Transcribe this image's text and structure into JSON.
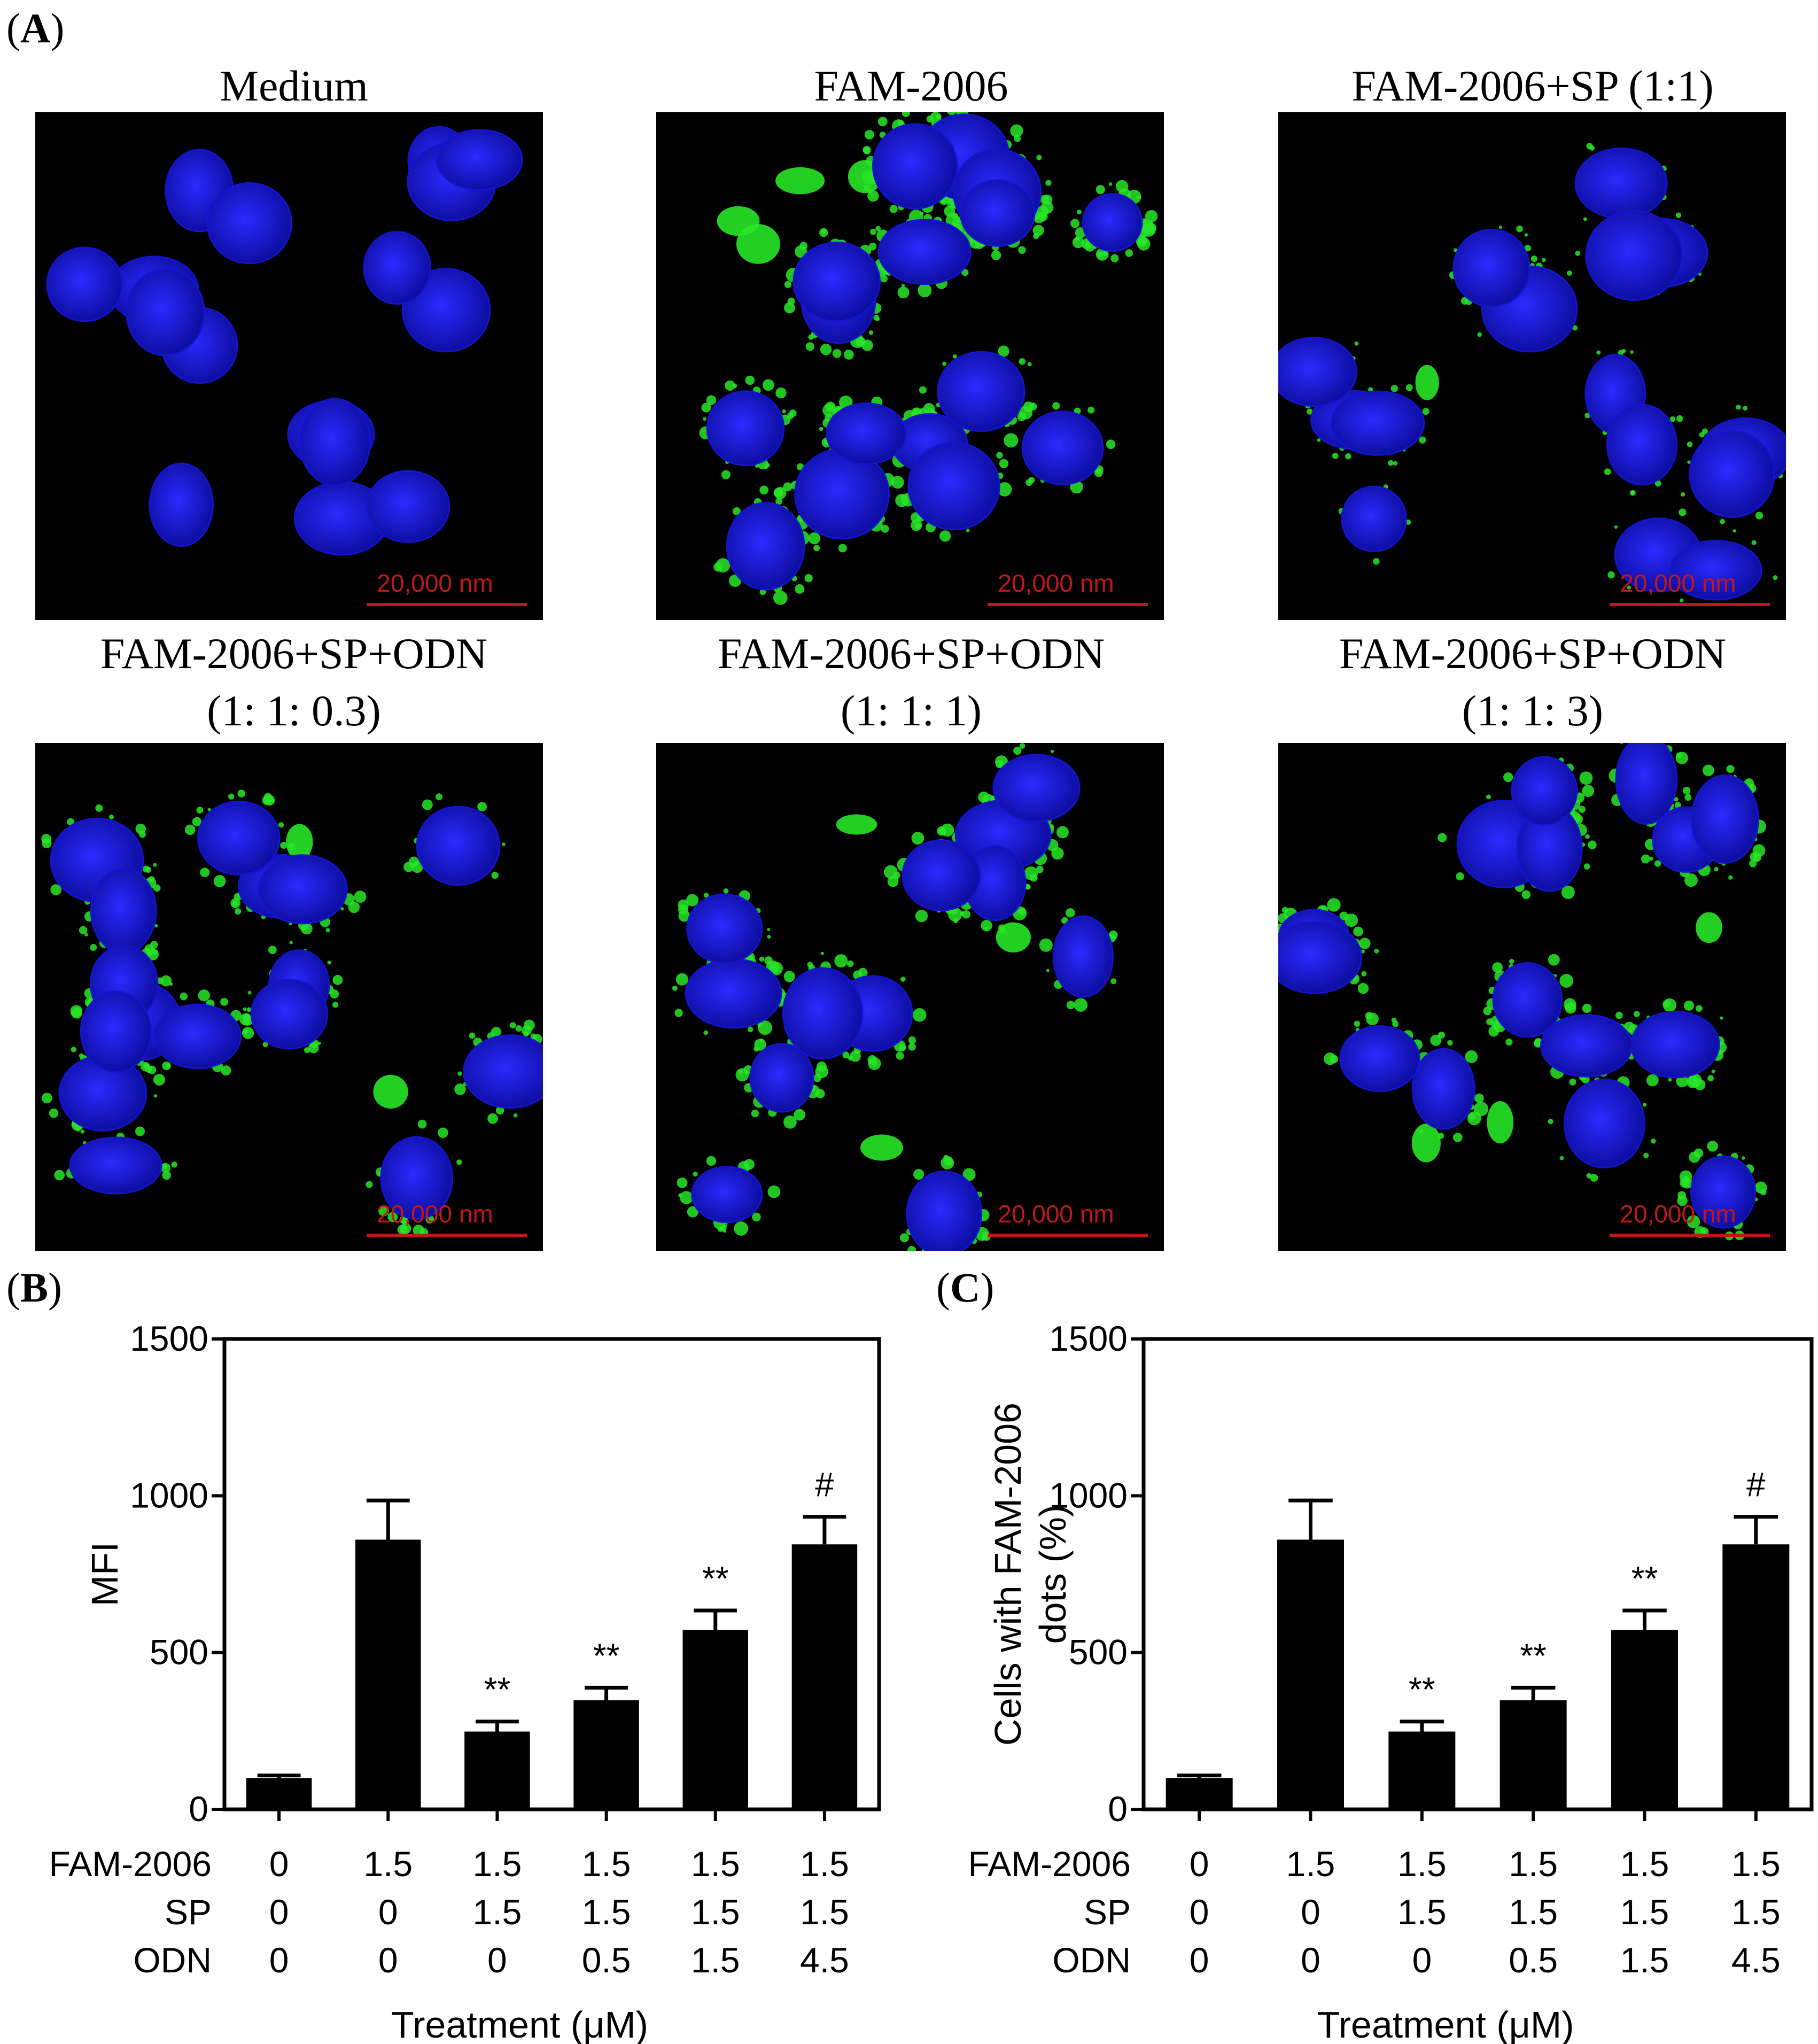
{
  "panel_labels": {
    "a": "A",
    "b": "B",
    "c": "C"
  },
  "micrographs": [
    {
      "title_lines": [
        "Medium"
      ],
      "scale_label": "20,000 nm"
    },
    {
      "title_lines": [
        "FAM-2006"
      ],
      "scale_label": "20,000 nm"
    },
    {
      "title_lines": [
        "FAM-2006+SP (1:1)"
      ],
      "scale_label": "20,000 nm"
    },
    {
      "title_lines": [
        "FAM-2006+SP+ODN",
        "(1: 1: 0.3)"
      ],
      "scale_label": "20,000 nm"
    },
    {
      "title_lines": [
        "FAM-2006+SP+ODN",
        "(1: 1: 1)"
      ],
      "scale_label": "20,000 nm"
    },
    {
      "title_lines": [
        "FAM-2006+SP+ODN",
        "(1: 1: 3)"
      ],
      "scale_label": "20,000 nm"
    }
  ],
  "colors": {
    "nucleus": "#1414d2",
    "fam_signal": "#28e628",
    "scale_bar": "#c01818",
    "bars": "#000000"
  },
  "chart_data": [
    {
      "type": "bar",
      "panel": "B",
      "ylabel": "MFI",
      "xlabel": "Treatment (μM)",
      "ylim": [
        0,
        1500
      ],
      "yticks": [
        0,
        500,
        1000,
        1500
      ],
      "row_labels": [
        "FAM-2006",
        "SP",
        "ODN"
      ],
      "treatments": [
        [
          "0",
          "0",
          "0"
        ],
        [
          "1.5",
          "0",
          "0"
        ],
        [
          "1.5",
          "1.5",
          "0"
        ],
        [
          "1.5",
          "1.5",
          "0.5"
        ],
        [
          "1.5",
          "1.5",
          "1.5"
        ],
        [
          "1.5",
          "1.5",
          "4.5"
        ]
      ],
      "values": [
        100,
        860,
        248,
        348,
        572,
        845
      ],
      "errors": [
        8,
        125,
        32,
        40,
        62,
        88
      ],
      "annotations": [
        "",
        "",
        "**",
        "**",
        "**",
        "#"
      ]
    },
    {
      "type": "bar",
      "panel": "C",
      "ylabel": "Cells with FAM-2006 dots (%)",
      "ylabel_lines": [
        "Cells with FAM-2006",
        "dots (%)"
      ],
      "xlabel": "Treatment (μM)",
      "ylim": [
        0,
        1500
      ],
      "yticks": [
        0,
        500,
        1000,
        1500
      ],
      "row_labels": [
        "FAM-2006",
        "SP",
        "ODN"
      ],
      "treatments": [
        [
          "0",
          "0",
          "0"
        ],
        [
          "1.5",
          "0",
          "0"
        ],
        [
          "1.5",
          "1.5",
          "0"
        ],
        [
          "1.5",
          "1.5",
          "0.5"
        ],
        [
          "1.5",
          "1.5",
          "1.5"
        ],
        [
          "1.5",
          "1.5",
          "4.5"
        ]
      ],
      "values": [
        100,
        860,
        248,
        348,
        572,
        845
      ],
      "errors": [
        8,
        125,
        32,
        40,
        62,
        88
      ],
      "annotations": [
        "",
        "",
        "**",
        "**",
        "**",
        "#"
      ]
    }
  ]
}
